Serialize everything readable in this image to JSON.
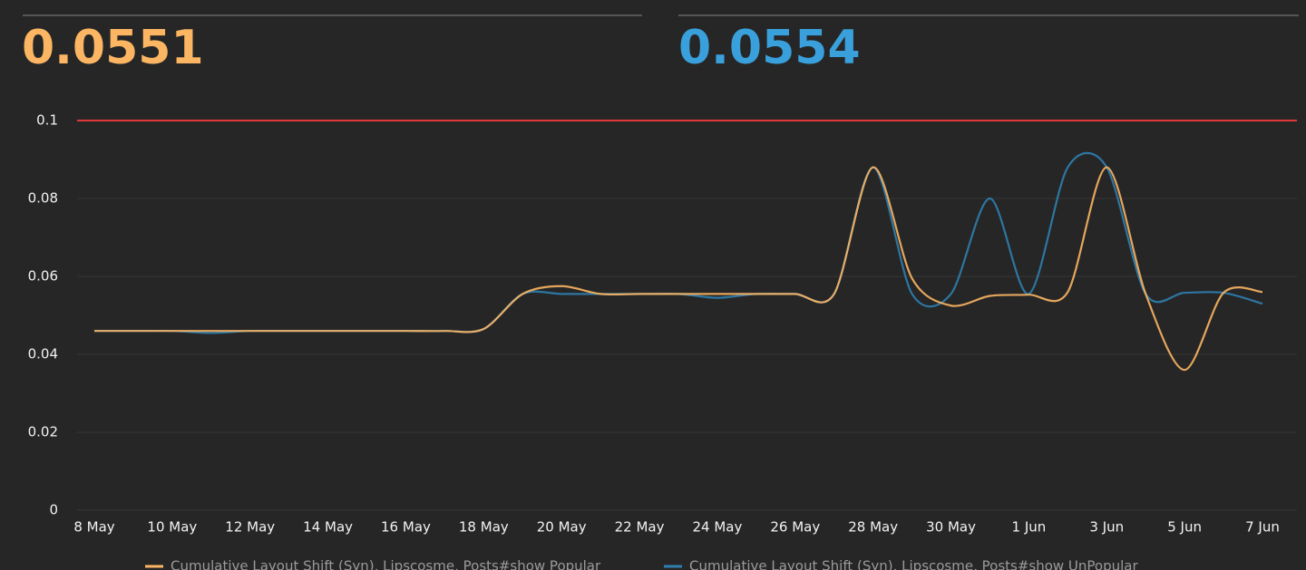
{
  "summary": [
    {
      "value": 0.0551,
      "color": "#fbb563"
    },
    {
      "value": 0.0554,
      "color": "#3aa0dc"
    }
  ],
  "chart_data": {
    "type": "line",
    "categories": [
      "8 May",
      null,
      "10 May",
      null,
      "12 May",
      null,
      "14 May",
      null,
      "16 May",
      null,
      "18 May",
      null,
      "20 May",
      null,
      "22 May",
      null,
      "24 May",
      null,
      "26 May",
      null,
      "28 May",
      null,
      "30 May",
      null,
      "1 Jun",
      null,
      "3 Jun",
      null,
      "5 Jun",
      null,
      "7 Jun"
    ],
    "series": [
      {
        "name": "Cumulative Layout Shift (Syn), Lipscosme, Posts#show Popular",
        "color": "#fbb563",
        "values": [
          0.046,
          0.046,
          0.046,
          0.046,
          0.046,
          0.046,
          0.046,
          0.046,
          0.046,
          0.046,
          0.0465,
          0.0555,
          0.0575,
          0.0555,
          0.0555,
          0.0555,
          0.0555,
          0.0555,
          0.0555,
          0.0555,
          0.088,
          0.0595,
          0.0525,
          0.055,
          0.0553,
          0.056,
          0.088,
          0.0555,
          0.036,
          0.0558,
          0.056
        ]
      },
      {
        "name": "Cumulative Layout Shift (Syn), Lipscosme, Posts#show UnPopular",
        "color": "#2f7fb0",
        "values": [
          0.046,
          0.046,
          0.046,
          0.0455,
          0.046,
          0.046,
          0.046,
          0.046,
          0.046,
          0.046,
          0.0465,
          0.0555,
          0.0555,
          0.0555,
          0.0555,
          0.0555,
          0.0545,
          0.0555,
          0.0555,
          0.0555,
          0.088,
          0.0555,
          0.0555,
          0.08,
          0.0555,
          0.088,
          0.088,
          0.0555,
          0.0558,
          0.0558,
          0.053
        ]
      }
    ],
    "ylim": [
      0,
      0.1
    ],
    "yticks": [
      0,
      0.02,
      0.04,
      0.06,
      0.08,
      0.1
    ],
    "grid": true,
    "threshold": 0.1,
    "threshold_color": "#e0383a"
  }
}
